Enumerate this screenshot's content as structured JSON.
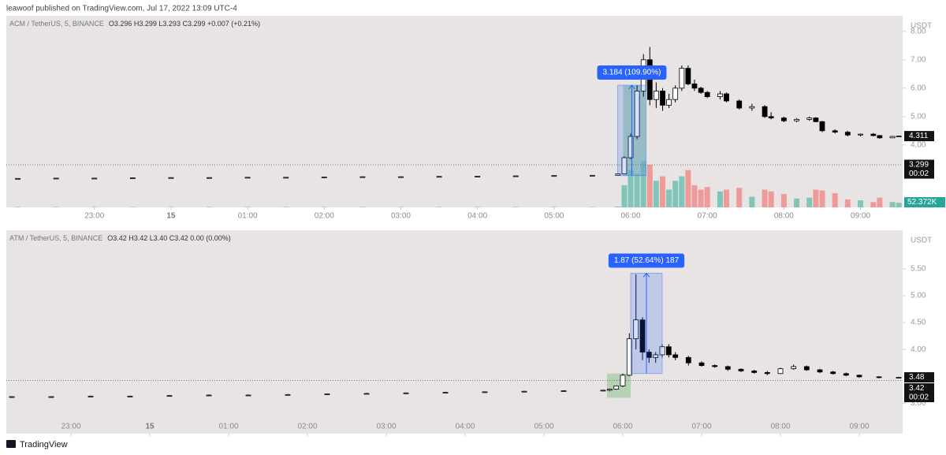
{
  "header": "leawoof published on TradingView.com, Jul 17, 2022 13:09 UTC-4",
  "footer": "TradingView",
  "chart_data": [
    {
      "type": "candlestick",
      "legend": "ACM / TetherUS, 5, BINANCE",
      "ohlc": "O3.296 H3.299 L3.293 C3.299 +0.007 (+0.21%)",
      "currency": "USDT",
      "up_color": "#ffffff",
      "down_color": "#000000",
      "up_volume_color": "#7fc5b9",
      "down_volume_color": "#ee9a98",
      "x": [
        22,
        22.5,
        23,
        23.5,
        24,
        24.5,
        25,
        25.5,
        26,
        26.5,
        27,
        27.5,
        28,
        28.5,
        29,
        29.5,
        29.833,
        29.917,
        30,
        30.083,
        30.167,
        30.25,
        30.333,
        30.417,
        30.5,
        30.583,
        30.667,
        30.75,
        30.833,
        30.917,
        31,
        31.167,
        31.25,
        31.417,
        31.583,
        31.75,
        31.833,
        32,
        32.167,
        32.333,
        32.417,
        32.5,
        32.667,
        32.833,
        33,
        33.167,
        33.25,
        33.417,
        33.5
      ],
      "open": [
        2.81,
        2.82,
        2.83,
        2.83,
        2.84,
        2.85,
        2.85,
        2.86,
        2.86,
        2.87,
        2.88,
        2.88,
        2.89,
        2.9,
        2.91,
        2.92,
        2.93,
        2.98,
        3.55,
        4.3,
        5.9,
        7.0,
        5.6,
        5.9,
        5.4,
        5.6,
        6.0,
        6.7,
        6.15,
        6.0,
        5.85,
        5.7,
        5.8,
        5.55,
        5.3,
        5.35,
        5.0,
        4.95,
        4.85,
        4.9,
        4.95,
        4.82,
        4.5,
        4.45,
        4.35,
        4.38,
        4.33,
        4.25,
        4.3
      ],
      "high": [
        2.83,
        2.84,
        2.84,
        2.85,
        2.86,
        2.86,
        2.87,
        2.87,
        2.88,
        2.89,
        2.89,
        2.9,
        2.91,
        2.92,
        2.93,
        2.94,
        3.0,
        3.6,
        4.4,
        6.1,
        7.2,
        7.45,
        6.2,
        6.0,
        5.8,
        6.1,
        6.8,
        6.8,
        6.3,
        6.05,
        5.9,
        5.9,
        5.85,
        5.6,
        5.45,
        5.4,
        5.15,
        5.0,
        4.95,
        5.0,
        4.98,
        4.85,
        4.55,
        4.5,
        4.4,
        4.42,
        4.35,
        4.32,
        4.33
      ],
      "low": [
        2.8,
        2.81,
        2.82,
        2.82,
        2.83,
        2.84,
        2.84,
        2.85,
        2.85,
        2.86,
        2.87,
        2.87,
        2.88,
        2.89,
        2.9,
        2.91,
        2.92,
        2.97,
        3.5,
        4.2,
        5.7,
        5.4,
        5.3,
        5.2,
        5.3,
        5.5,
        5.9,
        6.1,
        5.9,
        5.8,
        5.65,
        5.6,
        5.5,
        5.25,
        5.2,
        4.95,
        4.9,
        4.8,
        4.8,
        4.85,
        4.8,
        4.45,
        4.4,
        4.3,
        4.3,
        4.3,
        4.22,
        4.24,
        4.28
      ],
      "close": [
        2.82,
        2.83,
        2.83,
        2.84,
        2.85,
        2.85,
        2.86,
        2.86,
        2.87,
        2.88,
        2.88,
        2.89,
        2.9,
        2.91,
        2.92,
        2.93,
        2.98,
        3.55,
        4.3,
        5.9,
        7.0,
        5.6,
        5.9,
        5.4,
        5.6,
        6.0,
        6.7,
        6.15,
        6.0,
        5.85,
        5.7,
        5.8,
        5.55,
        5.3,
        5.35,
        5.0,
        4.95,
        4.85,
        4.9,
        4.95,
        4.82,
        4.5,
        4.45,
        4.35,
        4.38,
        4.33,
        4.25,
        4.3,
        4.311
      ],
      "volume": [
        5,
        5,
        5,
        5,
        5,
        5,
        5,
        5,
        5,
        5,
        5,
        5,
        5,
        5,
        5,
        5,
        10,
        250,
        420,
        380,
        520,
        480,
        300,
        350,
        200,
        300,
        350,
        420,
        250,
        200,
        230,
        180,
        200,
        220,
        120,
        200,
        180,
        150,
        100,
        110,
        200,
        190,
        160,
        90,
        80,
        60,
        110,
        60,
        52.372
      ],
      "volume_ylim": [
        0,
        800
      ],
      "volume_marker": {
        "value": 52.372,
        "label": "52.372K"
      },
      "xlim": [
        21.85,
        33.55
      ],
      "ylim": [
        1.8,
        8.55
      ],
      "xticks": [
        {
          "value": 23,
          "label": "23:00"
        },
        {
          "value": 24,
          "label": "15"
        },
        {
          "value": 25,
          "label": "01:00"
        },
        {
          "value": 26,
          "label": "02:00"
        },
        {
          "value": 27,
          "label": "03:00"
        },
        {
          "value": 28,
          "label": "04:00"
        },
        {
          "value": 29,
          "label": "05:00"
        },
        {
          "value": 30,
          "label": "06:00"
        },
        {
          "value": 31,
          "label": "07:00"
        },
        {
          "value": 32,
          "label": "08:00"
        },
        {
          "value": 33,
          "label": "09:00"
        }
      ],
      "yticks": [
        {
          "value": 8,
          "label": "8.00"
        },
        {
          "value": 7,
          "label": "7.00"
        },
        {
          "value": 6,
          "label": "6.00"
        },
        {
          "value": 5,
          "label": "5.00"
        },
        {
          "value": 4,
          "label": "4.00"
        }
      ],
      "zones": [
        {
          "x0": 29.9,
          "x1": 30.2,
          "y0": 2.9,
          "y1": 6.1
        }
      ],
      "measure": {
        "label": "3.184 (109.90%)",
        "x0": 29.83,
        "x1": 30.2,
        "y0": 2.92,
        "y1": 6.104
      },
      "markers": [
        {
          "value": 4.311,
          "label": "4.311"
        },
        {
          "value": 3.299,
          "label": "3.299",
          "countdown": "00:02"
        }
      ],
      "price_line": 3.299
    },
    {
      "type": "candlestick",
      "legend": "ATM / TetherUS, 5, BINANCE",
      "ohlc": "O3.42 H3.42 L3.40 C3.42 0.00 (0.00%)",
      "currency": "USDT",
      "up_color": "#ffffff",
      "down_color": "#000000",
      "x": [
        22.25,
        22.75,
        23.25,
        23.75,
        24.25,
        24.75,
        25.25,
        25.75,
        26.25,
        26.75,
        27.25,
        27.75,
        28.25,
        28.75,
        29.25,
        29.75,
        29.833,
        29.917,
        30,
        30.083,
        30.167,
        30.25,
        30.333,
        30.417,
        30.5,
        30.583,
        30.667,
        30.833,
        31,
        31.167,
        31.333,
        31.5,
        31.667,
        31.833,
        32,
        32.167,
        32.333,
        32.5,
        32.667,
        32.833,
        33,
        33.25,
        33.5
      ],
      "open": [
        3.11,
        3.12,
        3.12,
        3.13,
        3.13,
        3.14,
        3.15,
        3.15,
        3.16,
        3.17,
        3.18,
        3.19,
        3.2,
        3.21,
        3.22,
        3.23,
        3.24,
        3.26,
        3.32,
        3.52,
        4.2,
        4.55,
        3.95,
        3.85,
        3.9,
        4.05,
        3.9,
        3.85,
        3.75,
        3.7,
        3.68,
        3.63,
        3.6,
        3.57,
        3.55,
        3.64,
        3.68,
        3.62,
        3.58,
        3.55,
        3.52,
        3.49,
        3.48
      ],
      "high": [
        3.13,
        3.13,
        3.14,
        3.14,
        3.15,
        3.16,
        3.16,
        3.17,
        3.18,
        3.19,
        3.2,
        3.21,
        3.22,
        3.23,
        3.24,
        3.25,
        3.27,
        3.33,
        3.55,
        4.3,
        5.4,
        4.6,
        4.0,
        3.95,
        4.1,
        4.1,
        3.95,
        3.88,
        3.78,
        3.72,
        3.7,
        3.65,
        3.62,
        3.6,
        3.66,
        3.72,
        3.7,
        3.64,
        3.6,
        3.57,
        3.53,
        3.5,
        3.49
      ],
      "low": [
        3.1,
        3.11,
        3.11,
        3.12,
        3.12,
        3.13,
        3.14,
        3.14,
        3.15,
        3.16,
        3.17,
        3.18,
        3.19,
        3.2,
        3.21,
        3.22,
        3.22,
        3.25,
        3.3,
        3.5,
        4.0,
        3.8,
        3.75,
        3.75,
        3.85,
        3.85,
        3.8,
        3.7,
        3.68,
        3.66,
        3.6,
        3.58,
        3.55,
        3.52,
        3.54,
        3.62,
        3.6,
        3.56,
        3.53,
        3.5,
        3.47,
        3.46,
        3.46
      ],
      "close": [
        3.12,
        3.12,
        3.13,
        3.13,
        3.14,
        3.15,
        3.15,
        3.16,
        3.17,
        3.18,
        3.19,
        3.2,
        3.21,
        3.22,
        3.23,
        3.24,
        3.26,
        3.32,
        3.52,
        4.2,
        4.55,
        3.95,
        3.85,
        3.9,
        4.05,
        3.9,
        3.85,
        3.75,
        3.7,
        3.68,
        3.63,
        3.6,
        3.57,
        3.55,
        3.64,
        3.68,
        3.62,
        3.58,
        3.55,
        3.52,
        3.49,
        3.48,
        3.48
      ],
      "xlim": [
        22.18,
        33.55
      ],
      "ylim": [
        2.43,
        6.22
      ],
      "xticks": [
        {
          "value": 23,
          "label": "23:00"
        },
        {
          "value": 24,
          "label": "15"
        },
        {
          "value": 25,
          "label": "01:00"
        },
        {
          "value": 26,
          "label": "02:00"
        },
        {
          "value": 27,
          "label": "03:00"
        },
        {
          "value": 28,
          "label": "04:00"
        },
        {
          "value": 29,
          "label": "05:00"
        },
        {
          "value": 30,
          "label": "06:00"
        },
        {
          "value": 31,
          "label": "07:00"
        },
        {
          "value": 32,
          "label": "08:00"
        },
        {
          "value": 33,
          "label": "09:00"
        }
      ],
      "yticks": [
        {
          "value": 5.5,
          "label": "5.50"
        },
        {
          "value": 5,
          "label": "5.00"
        },
        {
          "value": 4.5,
          "label": "4.50"
        },
        {
          "value": 4,
          "label": "4.00"
        },
        {
          "value": 3.5,
          "label": "3.50"
        },
        {
          "value": 3,
          "label": "3.00"
        }
      ],
      "zones": [
        {
          "x0": 29.8,
          "x1": 30.1,
          "y0": 3.1,
          "y1": 3.55
        }
      ],
      "measure": {
        "label": "1.87 (52.64%) 187",
        "x0": 30.1,
        "x1": 30.5,
        "y0": 3.55,
        "y1": 5.42
      },
      "markers": [
        {
          "value": 3.48,
          "label": "3.48"
        },
        {
          "value": 3.42,
          "label": "3.42",
          "countdown": "00:02"
        }
      ],
      "price_line": 3.42
    }
  ]
}
